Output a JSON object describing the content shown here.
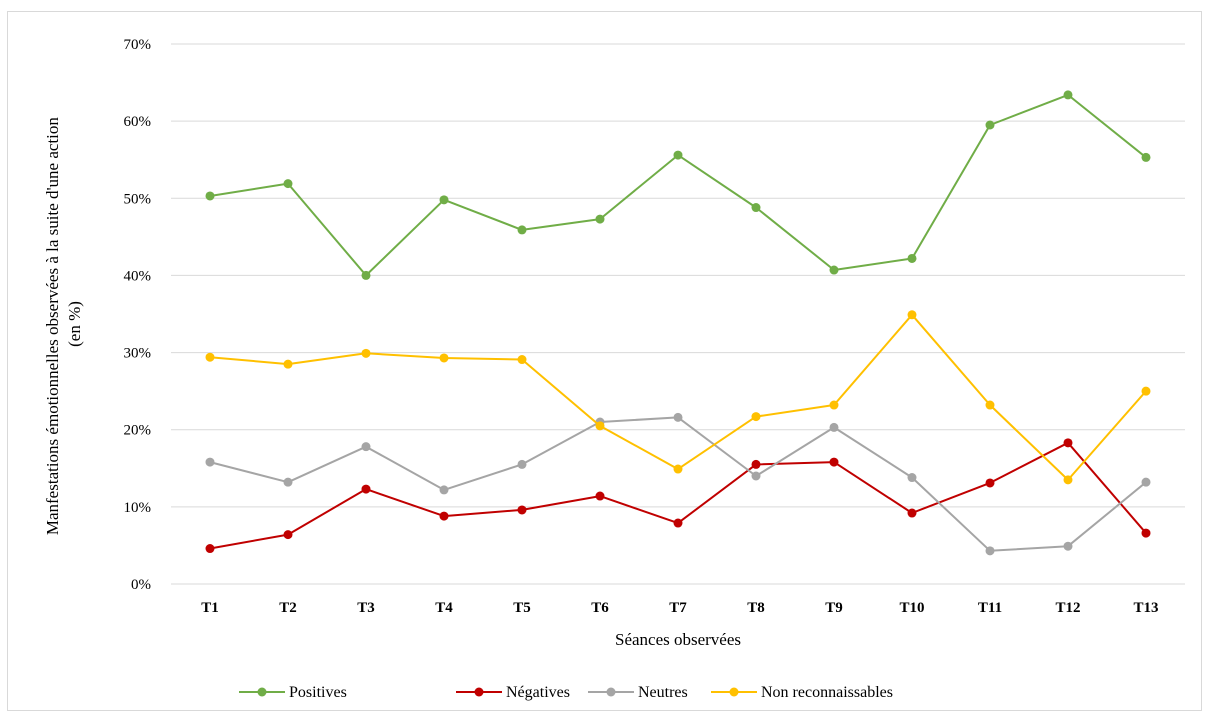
{
  "chart_data": {
    "type": "line",
    "title": "",
    "xlabel": "Séances observées",
    "ylabel_lines": [
      "Manfestations émotionnelles observées à la suite d'une action",
      "(en %)"
    ],
    "categories": [
      "T1",
      "T2",
      "T3",
      "T4",
      "T5",
      "T6",
      "T7",
      "T8",
      "T9",
      "T10",
      "T11",
      "T12",
      "T13"
    ],
    "y_ticks": [
      "0%",
      "10%",
      "20%",
      "30%",
      "40%",
      "50%",
      "60%",
      "70%"
    ],
    "ylim": [
      0,
      70
    ],
    "grid": true,
    "legend_position": "bottom",
    "series": [
      {
        "name": "Positives",
        "color": "#70ad47",
        "values": [
          50.3,
          51.9,
          40.0,
          49.8,
          45.9,
          47.3,
          55.6,
          48.8,
          40.7,
          42.2,
          59.5,
          63.4,
          55.3
        ]
      },
      {
        "name": "Négatives",
        "color": "#c00000",
        "values": [
          4.6,
          6.4,
          12.3,
          8.8,
          9.6,
          11.4,
          7.9,
          15.5,
          15.8,
          9.2,
          13.1,
          18.3,
          6.6
        ]
      },
      {
        "name": "Neutres",
        "color": "#a5a5a5",
        "values": [
          15.8,
          13.2,
          17.8,
          12.2,
          15.5,
          21.0,
          21.6,
          14.0,
          20.3,
          13.8,
          4.3,
          4.9,
          13.2
        ]
      },
      {
        "name": "Non reconnaissables",
        "color": "#ffc000",
        "values": [
          29.4,
          28.5,
          29.9,
          29.3,
          29.1,
          20.5,
          14.9,
          21.7,
          23.2,
          34.9,
          23.2,
          13.5,
          25.0
        ]
      }
    ]
  }
}
